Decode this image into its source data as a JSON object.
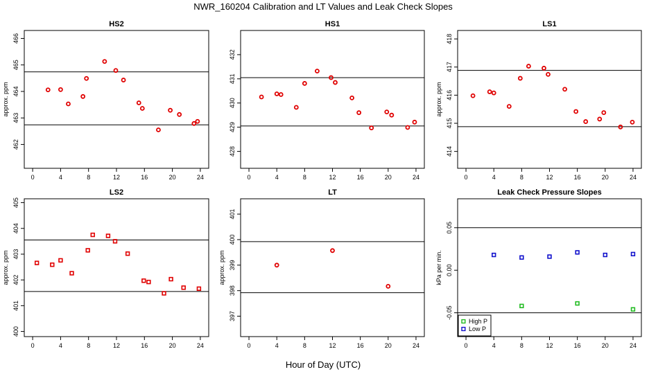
{
  "figure": {
    "title": "NWR_160204  Calibration and LT Values and Leak Check Slopes",
    "xlabel": "Hour of Day (UTC)"
  },
  "colors": {
    "points": "#e00000",
    "high_p": "#22bb22",
    "low_p": "#1111cc",
    "axis": "#000000"
  },
  "chart_data": [
    {
      "type": "scatter",
      "title": "HS2",
      "ylabel": "approx. ppm",
      "xlim": [
        -1.2,
        25.2
      ],
      "ylim": [
        461.1,
        466.3
      ],
      "xticks": [
        0,
        4,
        8,
        12,
        16,
        20,
        24
      ],
      "yticks": [
        462,
        463,
        464,
        465,
        466
      ],
      "hlines": [
        462.74,
        464.74
      ],
      "series": [
        {
          "marker": "circle",
          "x": [
            2.2,
            4.0,
            5.1,
            7.2,
            7.7,
            10.3,
            11.9,
            13.0,
            15.2,
            15.7,
            18.0,
            19.7,
            21.0,
            23.1,
            23.6
          ],
          "y": [
            464.06,
            464.07,
            463.53,
            463.81,
            464.49,
            465.13,
            464.79,
            464.43,
            463.57,
            463.36,
            462.55,
            463.29,
            463.13,
            462.79,
            462.87
          ]
        }
      ]
    },
    {
      "type": "scatter",
      "title": "HS1",
      "ylabel": "",
      "xlim": [
        -1.2,
        25.2
      ],
      "ylim": [
        427.3,
        433.0
      ],
      "xticks": [
        0,
        4,
        8,
        12,
        16,
        20,
        24
      ],
      "yticks": [
        428,
        429,
        430,
        431,
        432
      ],
      "hlines": [
        429.05,
        431.05
      ],
      "series": [
        {
          "marker": "circle",
          "x": [
            1.8,
            4.0,
            4.6,
            6.8,
            8.0,
            9.8,
            11.8,
            12.4,
            14.8,
            15.8,
            17.6,
            19.8,
            20.5,
            22.8,
            23.8
          ],
          "y": [
            430.25,
            430.38,
            430.35,
            429.82,
            430.81,
            431.32,
            431.05,
            430.85,
            430.21,
            429.6,
            428.97,
            429.63,
            429.5,
            428.99,
            429.21
          ]
        }
      ]
    },
    {
      "type": "scatter",
      "title": "LS1",
      "ylabel": "approx. ppm",
      "xlim": [
        -1.2,
        25.2
      ],
      "ylim": [
        413.4,
        418.3
      ],
      "xticks": [
        0,
        4,
        8,
        12,
        16,
        20,
        24
      ],
      "yticks": [
        414,
        415,
        416,
        417,
        418
      ],
      "hlines": [
        414.88,
        416.88
      ],
      "series": [
        {
          "marker": "circle",
          "x": [
            1.0,
            3.4,
            4.0,
            6.2,
            7.8,
            9.0,
            11.2,
            11.8,
            14.2,
            15.8,
            17.2,
            19.2,
            19.8,
            22.2,
            23.9
          ],
          "y": [
            415.98,
            416.12,
            416.08,
            415.6,
            416.6,
            417.03,
            416.96,
            416.74,
            416.21,
            415.42,
            415.06,
            415.15,
            415.38,
            414.87,
            415.04
          ]
        }
      ]
    },
    {
      "type": "scatter",
      "title": "LS2",
      "ylabel": "approx. ppm",
      "xlim": [
        -1.2,
        25.2
      ],
      "ylim": [
        399.8,
        405.15
      ],
      "xticks": [
        0,
        4,
        8,
        12,
        16,
        20,
        24
      ],
      "yticks": [
        400,
        401,
        402,
        403,
        404,
        405
      ],
      "hlines": [
        401.55,
        403.55
      ],
      "series": [
        {
          "marker": "square",
          "x": [
            0.6,
            2.8,
            4.0,
            5.6,
            7.9,
            8.6,
            10.8,
            11.8,
            13.6,
            15.9,
            16.6,
            18.8,
            19.8,
            21.6,
            23.8
          ],
          "y": [
            402.66,
            402.59,
            402.76,
            402.26,
            403.15,
            403.75,
            403.71,
            403.5,
            403.02,
            401.97,
            401.92,
            401.48,
            402.03,
            401.7,
            401.66
          ]
        }
      ]
    },
    {
      "type": "scatter",
      "title": "LT",
      "ylabel": "approx. ppm",
      "xlim": [
        -1.2,
        25.2
      ],
      "ylim": [
        396.2,
        401.6
      ],
      "xticks": [
        0,
        4,
        8,
        12,
        16,
        20,
        24
      ],
      "yticks": [
        397,
        398,
        399,
        400,
        401
      ],
      "hlines": [
        397.92,
        399.92
      ],
      "series": [
        {
          "marker": "circle",
          "x": [
            4.0,
            12.0,
            20.0
          ],
          "y": [
            399.0,
            399.57,
            398.17
          ]
        }
      ]
    },
    {
      "type": "scatter",
      "title": "Leak Check Pressure Slopes",
      "ylabel": "kPa per min.",
      "xlim": [
        -1.2,
        25.2
      ],
      "ylim": [
        -0.078,
        0.084
      ],
      "xticks": [
        0,
        4,
        8,
        12,
        16,
        20,
        24
      ],
      "yticks": [
        -0.05,
        0.0,
        0.05
      ],
      "ytick_labels": [
        "-0.05",
        "0.00",
        "0.05"
      ],
      "hlines": [
        -0.05,
        0.05
      ],
      "legend": {
        "position": "bottom-left",
        "entries": [
          "High P",
          "Low P"
        ]
      },
      "series": [
        {
          "name": "High P",
          "marker": "square",
          "color": "#22bb22",
          "x": [
            8,
            16,
            24
          ],
          "y": [
            -0.042,
            -0.039,
            -0.046
          ]
        },
        {
          "name": "Low P",
          "marker": "square",
          "color": "#1111cc",
          "x": [
            4,
            8,
            12,
            16,
            20,
            24
          ],
          "y": [
            0.018,
            0.015,
            0.016,
            0.021,
            0.018,
            0.019
          ]
        }
      ]
    }
  ]
}
